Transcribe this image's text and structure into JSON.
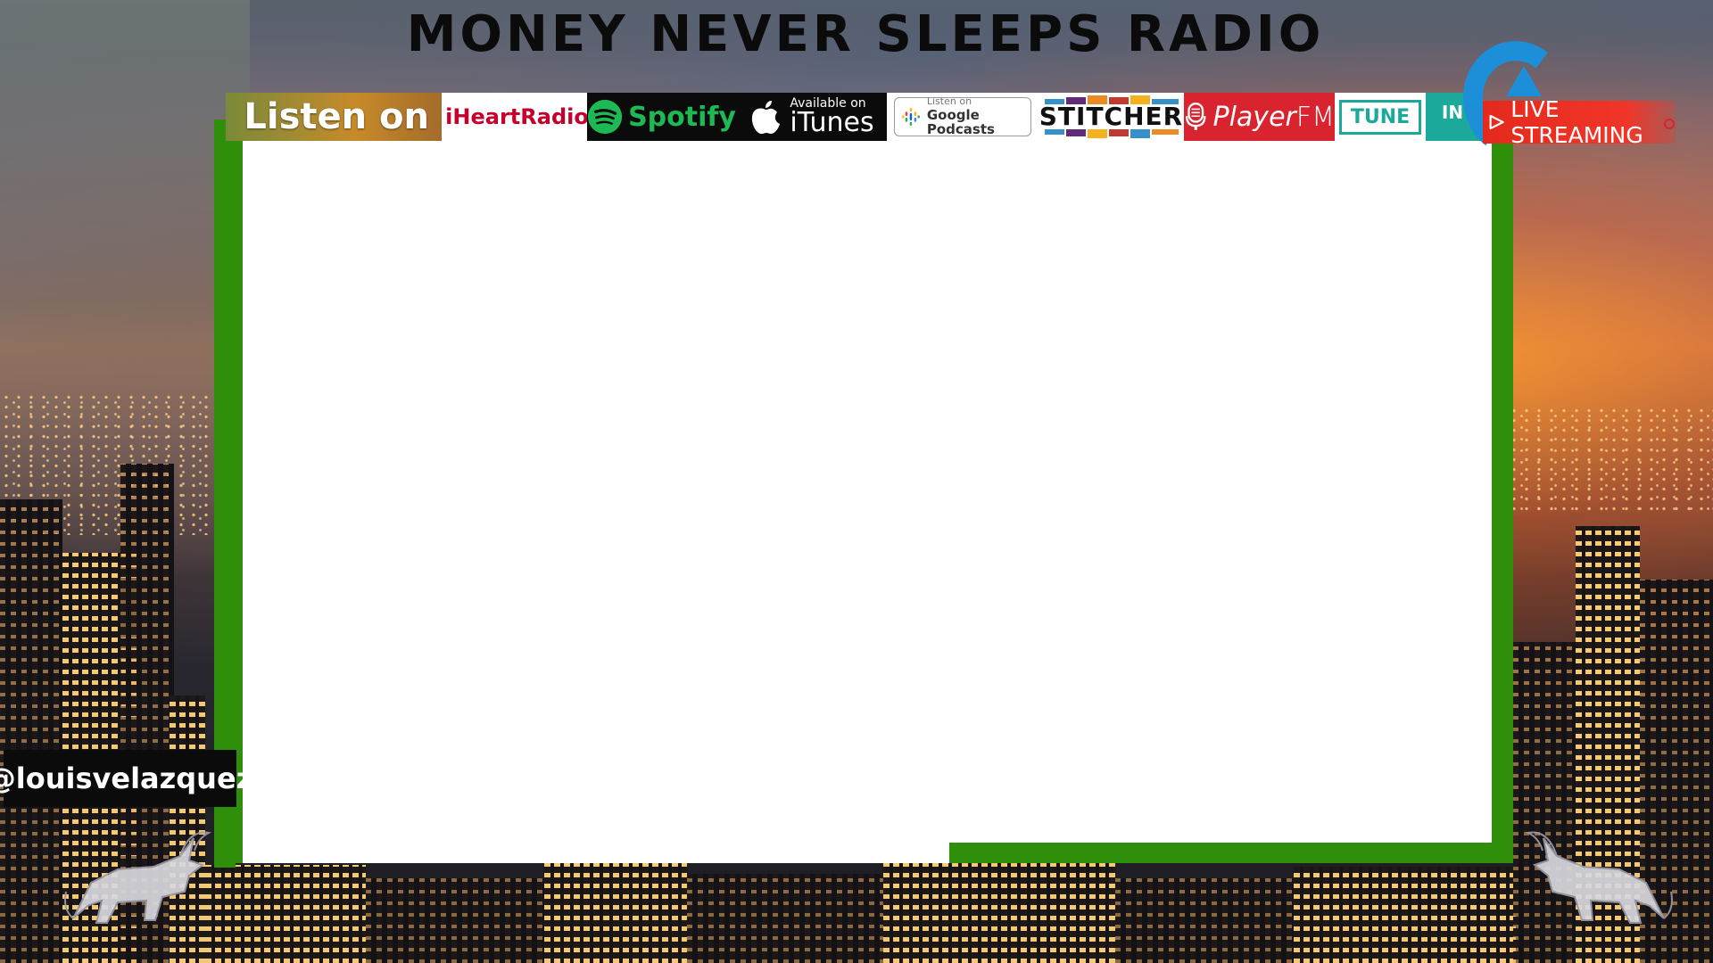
{
  "title": "MONEY NEVER SLEEPS RADIO",
  "listen_bar": {
    "label": "Listen on",
    "platforms": [
      {
        "id": "iheartradio",
        "name": "iHeartRadio",
        "icon": "iheart-icon"
      },
      {
        "id": "spotify",
        "name": "Spotify",
        "icon": "spotify-icon"
      },
      {
        "id": "itunes",
        "line1": "Available on",
        "line2": "iTunes",
        "icon": "apple-icon"
      },
      {
        "id": "google",
        "line1": "Listen on",
        "line2": "Google Podcasts",
        "icon": "google-podcasts-icon"
      },
      {
        "id": "stitcher",
        "name": "STITCHER",
        "icon": "stitcher-icon"
      },
      {
        "id": "playerfm",
        "name_a": "Player",
        "name_b": "FM",
        "icon": "microphone-icon"
      },
      {
        "id": "tunein",
        "name_a": "TUNE",
        "name_b": "IN"
      }
    ]
  },
  "live": {
    "label": "LIVE STREAMING",
    "icon": "play-icon"
  },
  "handle": "@louisvelazquez",
  "colors": {
    "frame_green": "#2f8e0a",
    "live_red": "#e52a1c",
    "tunein_teal": "#1aa99b",
    "spotify_green": "#1db954"
  }
}
